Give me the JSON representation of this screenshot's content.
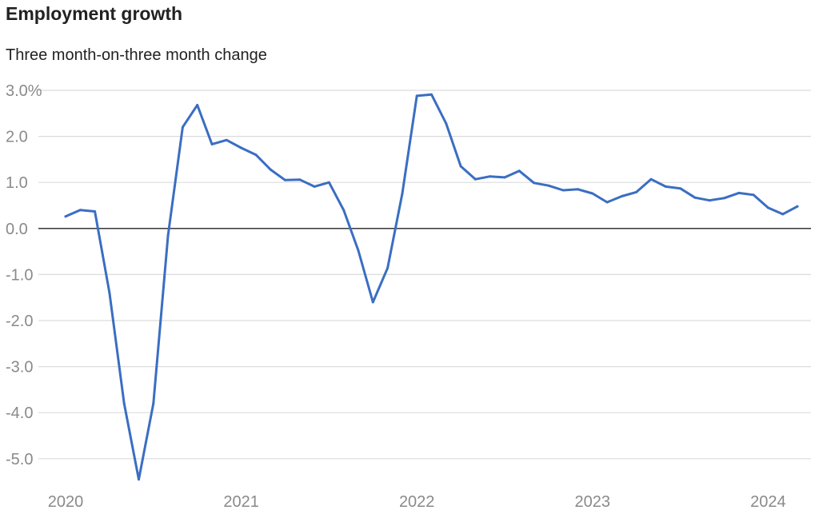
{
  "title": "Employment growth",
  "subtitle": "Three month-on-three month change",
  "colors": {
    "line": "#3a6ec2",
    "grid": "#dcdcdc",
    "zero_line": "#222222",
    "tick_text": "#8a8a8a",
    "title_text": "#222222"
  },
  "chart_data": {
    "type": "line",
    "title": "Employment growth",
    "subtitle": "Three month-on-three month change",
    "xlabel": "",
    "ylabel": "",
    "ylim": [
      -5.5,
      3.0
    ],
    "yticks": [
      3.0,
      2.0,
      1.0,
      0.0,
      -1.0,
      -2.0,
      -3.0,
      -4.0,
      -5.0
    ],
    "ytick_labels": [
      "3.0%",
      "2.0",
      "1.0",
      "0.0",
      "-1.0",
      "-2.0",
      "-3.0",
      "-4.0",
      "-5.0"
    ],
    "xlim": [
      "2020-01",
      "2024-05"
    ],
    "xticks": [
      "2020-01",
      "2021-01",
      "2022-01",
      "2023-01",
      "2024-01"
    ],
    "xtick_labels": [
      "2020",
      "2021",
      "2022",
      "2023",
      "2024"
    ],
    "grid": true,
    "legend": "none",
    "series": [
      {
        "x": [
          "2020-01",
          "2020-02",
          "2020-03",
          "2020-04",
          "2020-05",
          "2020-06",
          "2020-07",
          "2020-08",
          "2020-09",
          "2020-10",
          "2020-11",
          "2020-12",
          "2021-01",
          "2021-02",
          "2021-03",
          "2021-04",
          "2021-05",
          "2021-06",
          "2021-07",
          "2021-08",
          "2021-09",
          "2021-10",
          "2021-11",
          "2021-12",
          "2022-01",
          "2022-02",
          "2022-03",
          "2022-04",
          "2022-05",
          "2022-06",
          "2022-07",
          "2022-08",
          "2022-09",
          "2022-10",
          "2022-11",
          "2022-12",
          "2023-01",
          "2023-02",
          "2023-03",
          "2023-04",
          "2023-05",
          "2023-06",
          "2023-07",
          "2023-08",
          "2023-09",
          "2023-10",
          "2023-11",
          "2023-12",
          "2024-01",
          "2024-02",
          "2024-03"
        ],
        "values": [
          0.26,
          0.4,
          0.37,
          -1.4,
          -3.8,
          -5.45,
          -3.8,
          -0.15,
          2.2,
          2.68,
          1.83,
          1.92,
          1.75,
          1.6,
          1.28,
          1.05,
          1.06,
          0.91,
          1.0,
          0.4,
          -0.48,
          -1.6,
          -0.86,
          0.75,
          2.88,
          2.91,
          2.28,
          1.35,
          1.07,
          1.13,
          1.11,
          1.25,
          0.99,
          0.93,
          0.83,
          0.85,
          0.76,
          0.57,
          0.7,
          0.79,
          1.07,
          0.91,
          0.87,
          0.67,
          0.61,
          0.66,
          0.77,
          0.73,
          0.45,
          0.31,
          0.48
        ]
      }
    ]
  }
}
